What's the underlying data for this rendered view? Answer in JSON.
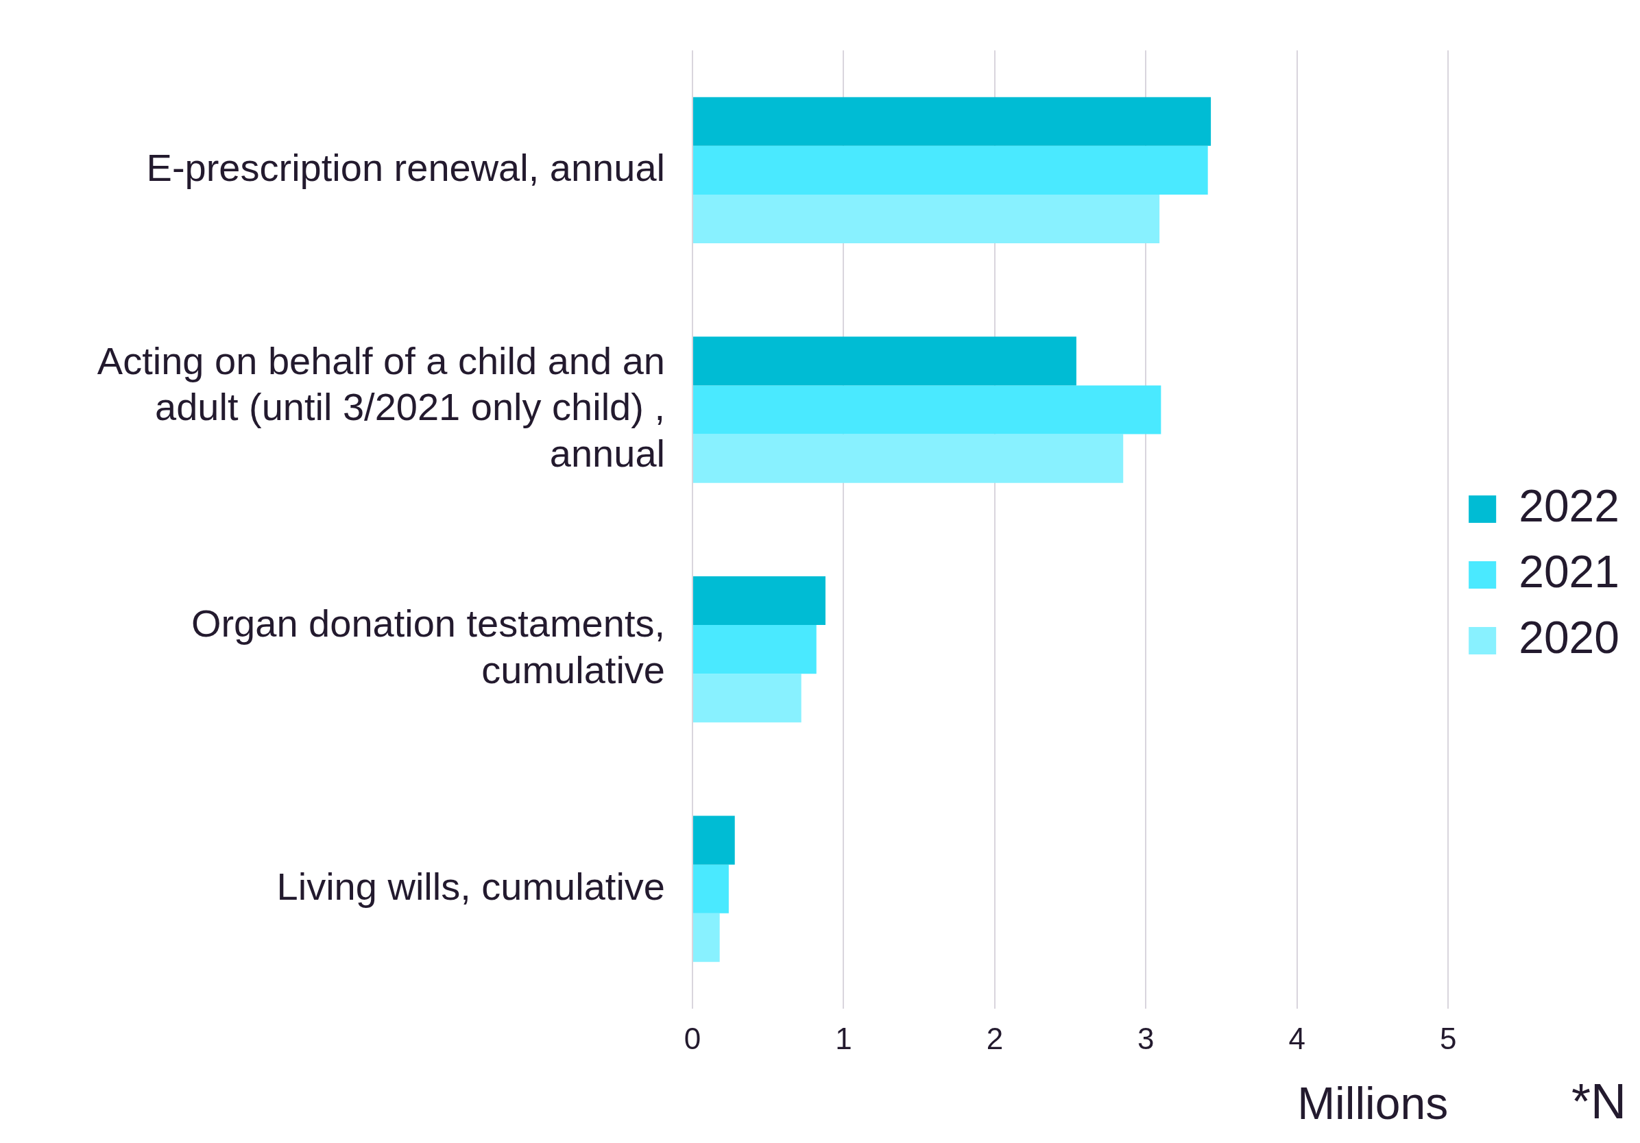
{
  "chart_data": {
    "type": "bar",
    "orientation": "horizontal",
    "categories": [
      "E-prescription renewal, annual",
      "Acting on behalf of a child and an adult (until 3/2021 only child) , annual",
      "Organ donation testaments, cumulative",
      "Living wills, cumulative"
    ],
    "series": [
      {
        "name": "2022",
        "color": "#00bcd4",
        "values": [
          3.43,
          2.54,
          0.88,
          0.28
        ]
      },
      {
        "name": "2021",
        "color": "#4ae9ff",
        "values": [
          3.41,
          3.1,
          0.82,
          0.24
        ]
      },
      {
        "name": "2020",
        "color": "#88f1ff",
        "values": [
          3.09,
          2.85,
          0.72,
          0.18
        ]
      }
    ],
    "xlim": [
      0,
      5
    ],
    "xticks": [
      0,
      1,
      2,
      3,
      4,
      5
    ],
    "xlabel": "Millions",
    "grid": "x",
    "legend": "right",
    "annotations": [
      "*N"
    ]
  }
}
